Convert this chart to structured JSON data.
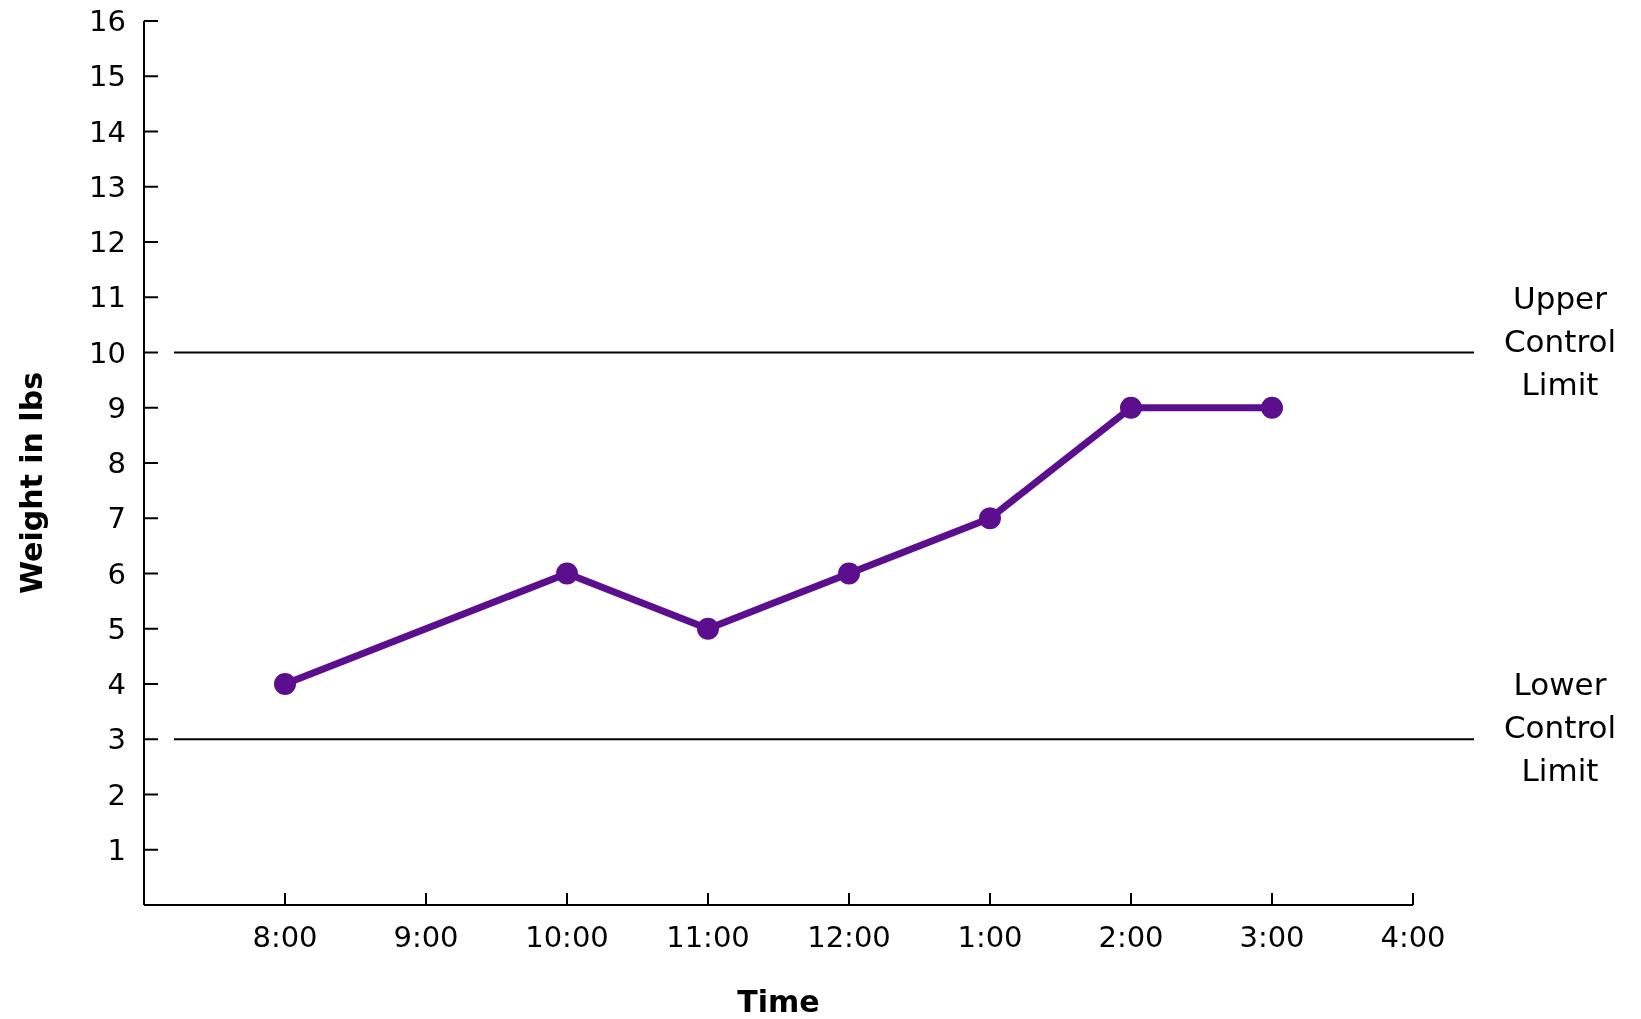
{
  "chart_data": {
    "type": "line",
    "xlabel": "Time",
    "ylabel": "Weight in lbs",
    "categories": [
      "8:00",
      "9:00",
      "10:00",
      "11:00",
      "12:00",
      "1:00",
      "2:00",
      "3:00",
      "4:00"
    ],
    "series": [
      {
        "color": "#5b0f8e",
        "values": [
          4,
          null,
          6,
          5,
          6,
          7,
          9,
          9,
          null
        ]
      }
    ],
    "ylim": [
      0,
      16
    ],
    "yticks": [
      1,
      2,
      3,
      4,
      5,
      6,
      7,
      8,
      9,
      10,
      11,
      12,
      13,
      14,
      15,
      16
    ],
    "ref_lines": [
      {
        "axis": "y",
        "value": 10,
        "label": "Upper Control Limit",
        "color": "#000000"
      },
      {
        "axis": "y",
        "value": 3,
        "label": "Lower Control Limit",
        "color": "#000000"
      }
    ],
    "marker": "circle",
    "line_style": "solid",
    "grid": false
  }
}
